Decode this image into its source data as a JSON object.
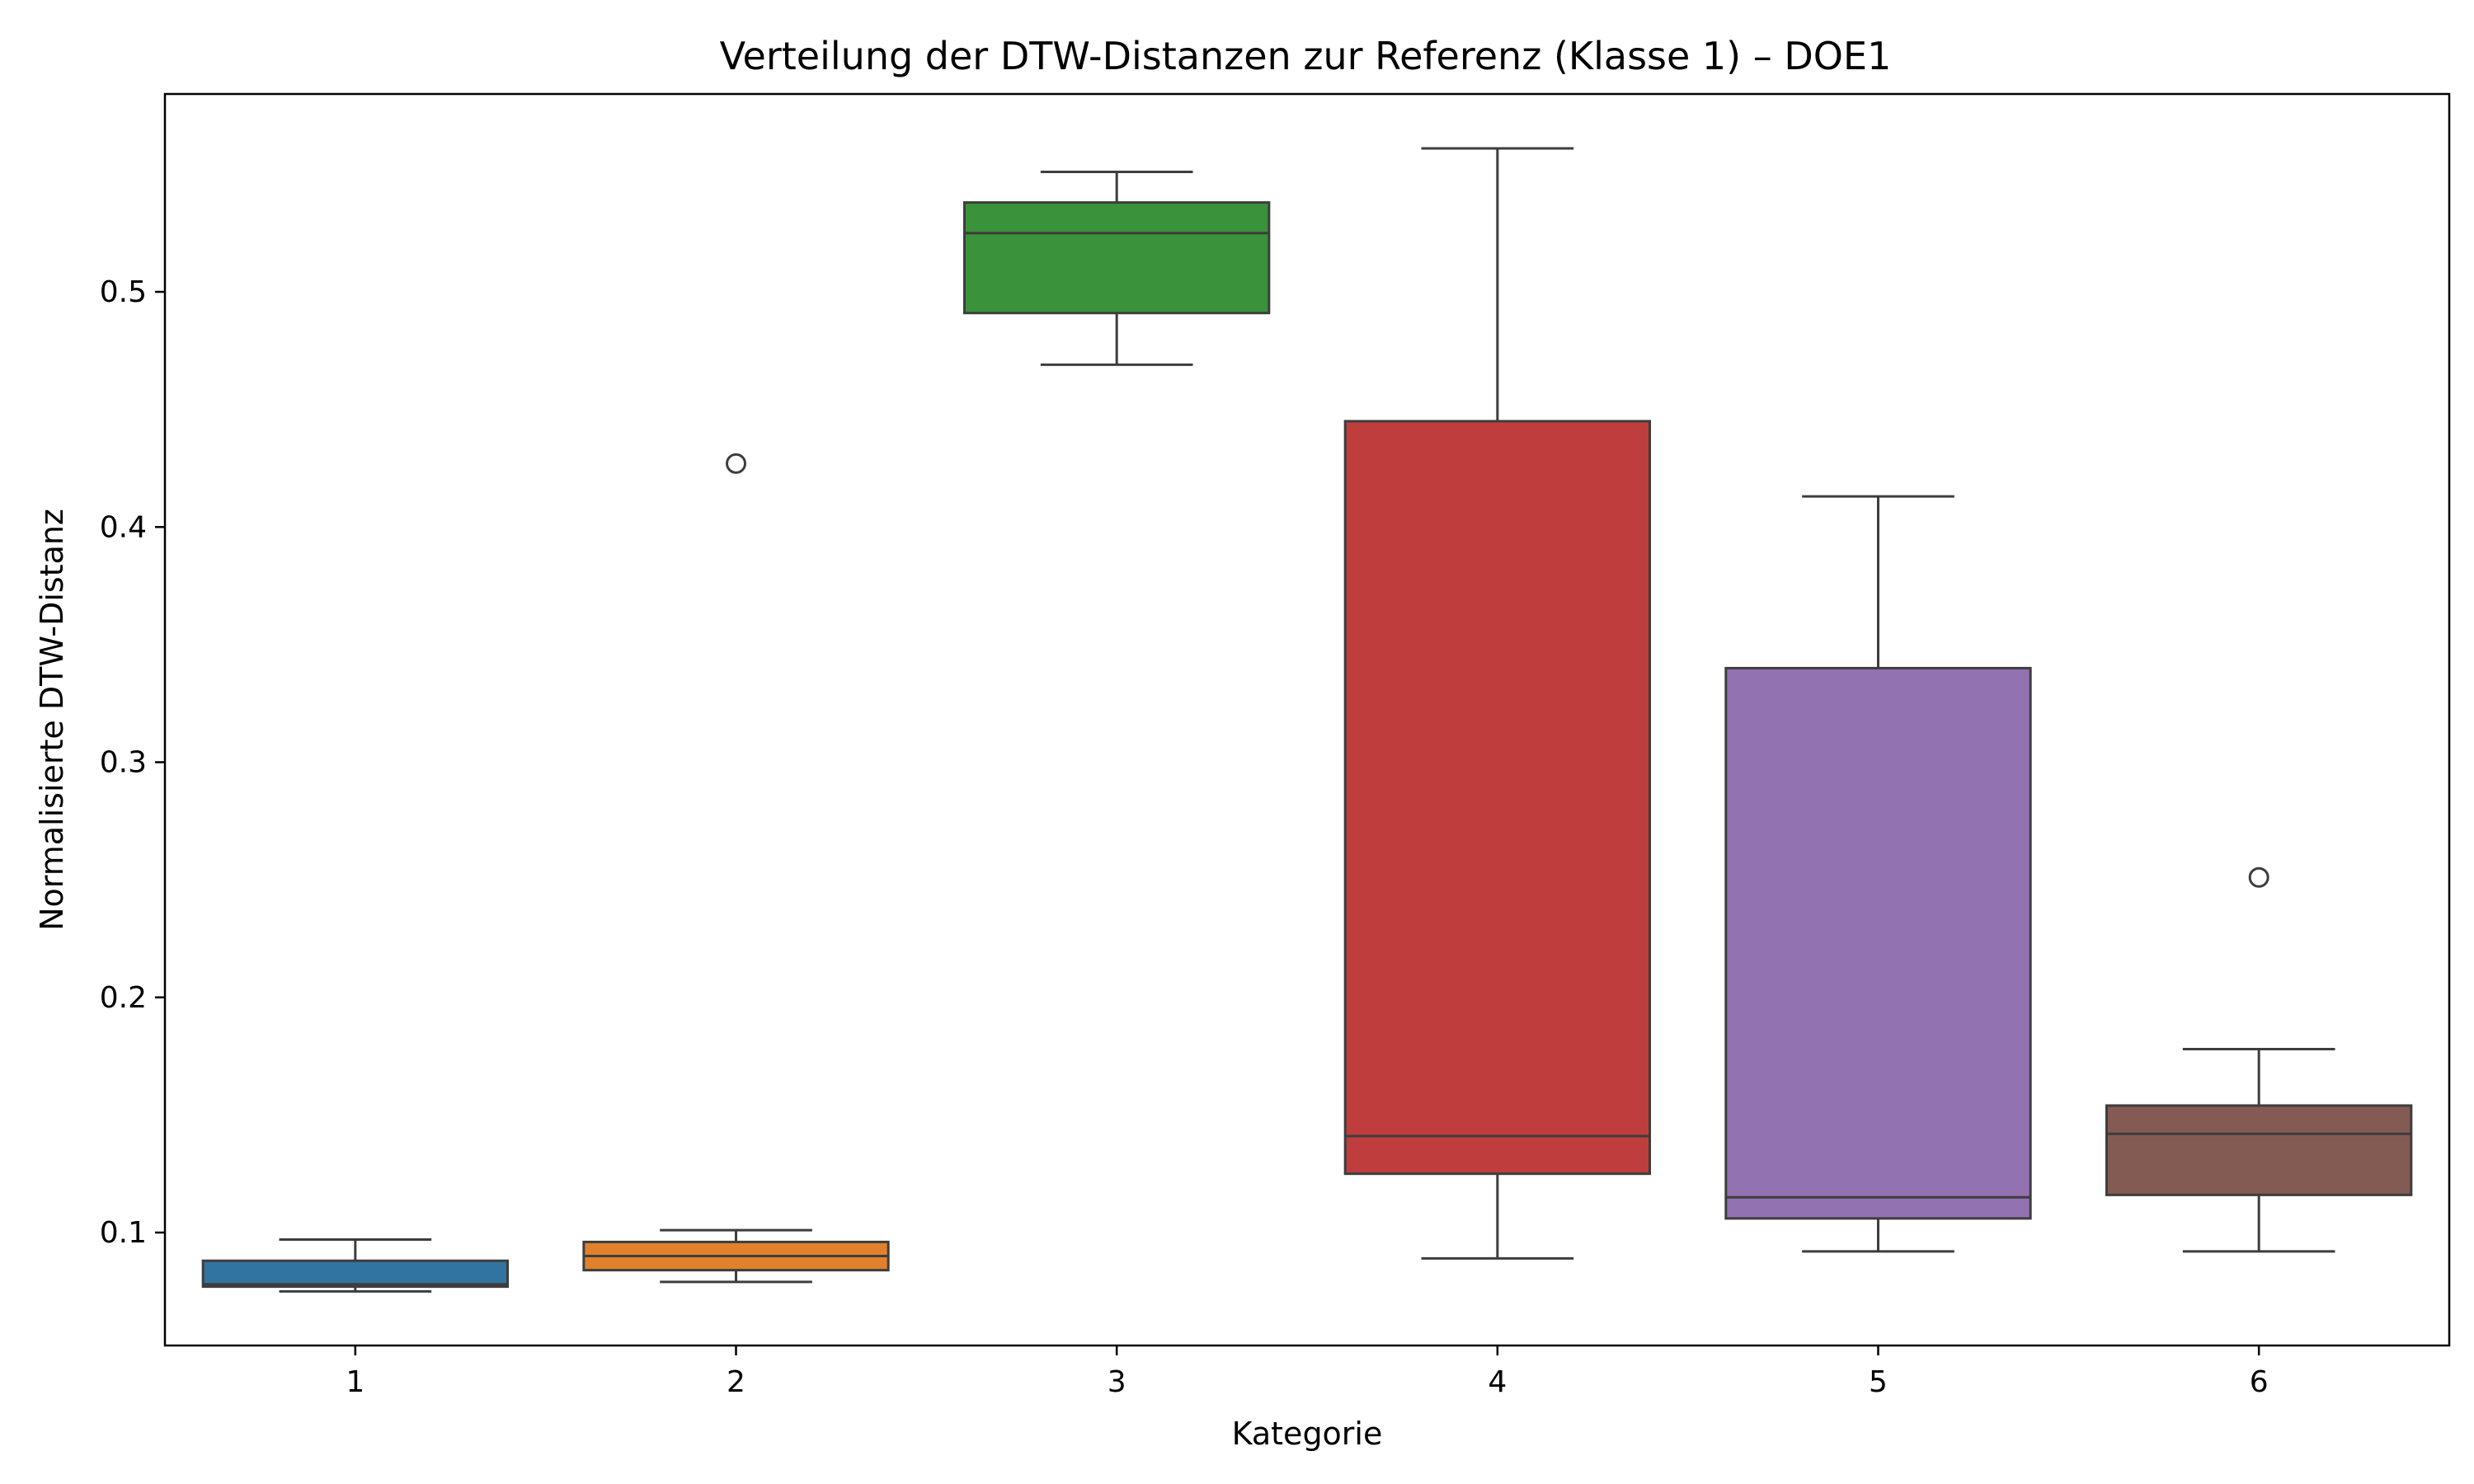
{
  "chart_data": {
    "type": "boxplot",
    "title": "Verteilung der DTW-Distanzen zur Referenz (Klasse 1) – DOE1",
    "xlabel": "Kategorie",
    "ylabel": "Normalisierte DTW-Distanz",
    "ylim": [
      0.05,
      0.58
    ],
    "yticks": [
      "0.1",
      "0.2",
      "0.3",
      "0.4",
      "0.5"
    ],
    "grid": false,
    "legend": "none",
    "categories": [
      "1",
      "2",
      "3",
      "4",
      "5",
      "6"
    ],
    "boxes": [
      {
        "category": "1",
        "whisker_low": 0.075,
        "q1": 0.077,
        "median": 0.078,
        "q3": 0.088,
        "whisker_high": 0.097,
        "outliers": [],
        "color": "#3274a1"
      },
      {
        "category": "2",
        "whisker_low": 0.079,
        "q1": 0.084,
        "median": 0.09,
        "q3": 0.096,
        "whisker_high": 0.101,
        "outliers": [
          0.427
        ],
        "color": "#e1812c"
      },
      {
        "category": "3",
        "whisker_low": 0.469,
        "q1": 0.491,
        "median": 0.525,
        "q3": 0.538,
        "whisker_high": 0.551,
        "outliers": [],
        "color": "#3a923a"
      },
      {
        "category": "4",
        "whisker_low": 0.089,
        "q1": 0.125,
        "median": 0.141,
        "q3": 0.445,
        "whisker_high": 0.561,
        "outliers": [],
        "color": "#c03d3e"
      },
      {
        "category": "5",
        "whisker_low": 0.092,
        "q1": 0.106,
        "median": 0.115,
        "q3": 0.34,
        "whisker_high": 0.413,
        "outliers": [],
        "color": "#9372b2"
      },
      {
        "category": "6",
        "whisker_low": 0.092,
        "q1": 0.116,
        "median": 0.142,
        "q3": 0.154,
        "whisker_high": 0.178,
        "outliers": [
          0.251
        ],
        "color": "#845b53"
      }
    ]
  }
}
